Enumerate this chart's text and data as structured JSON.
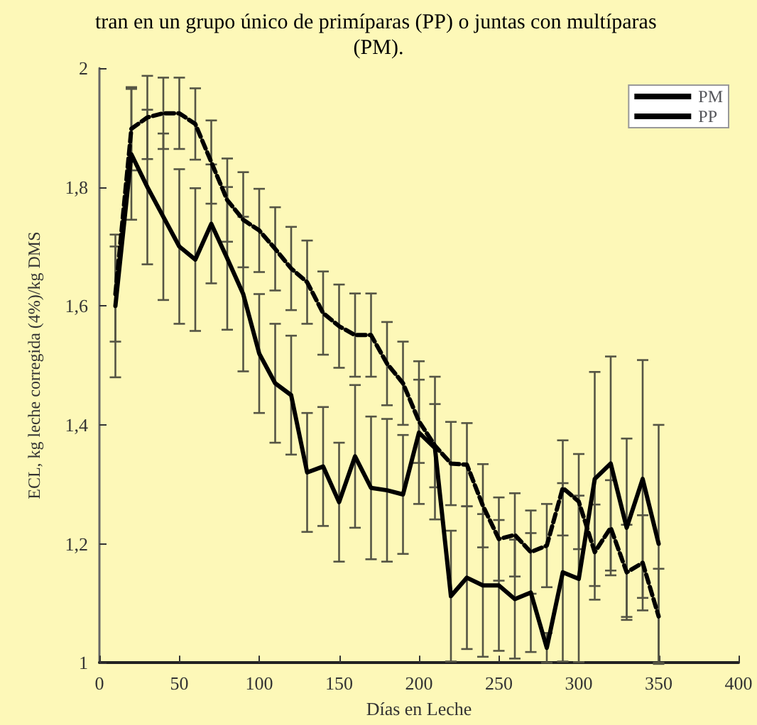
{
  "chart_data": {
    "type": "line",
    "title": "tran en un grupo único de primíparas (PP) o juntas con multíparas (PM).",
    "xlabel": "Días en Leche",
    "ylabel": "ECL, kg leche corregida (4%)/kg DMS",
    "x": [
      10,
      20,
      30,
      40,
      50,
      60,
      70,
      80,
      90,
      100,
      110,
      120,
      130,
      140,
      150,
      160,
      170,
      180,
      190,
      200,
      210,
      220,
      230,
      240,
      250,
      260,
      270,
      280,
      290,
      300,
      310,
      320,
      330,
      340,
      350
    ],
    "series": [
      {
        "name": "PM",
        "color": "#000000",
        "line_style": "solid",
        "values": [
          1.6,
          1.855,
          1.8,
          1.75,
          1.7,
          1.678,
          1.738,
          1.68,
          1.62,
          1.52,
          1.47,
          1.45,
          1.32,
          1.33,
          1.27,
          1.347,
          1.294,
          1.29,
          1.283,
          1.387,
          1.361,
          1.112,
          1.143,
          1.13,
          1.13,
          1.107,
          1.118,
          1.025,
          1.152,
          1.141,
          1.309,
          1.335,
          1.227,
          1.309,
          1.2
        ],
        "errors": [
          0.12,
          0.11,
          0.13,
          0.14,
          0.13,
          0.12,
          0.1,
          0.12,
          0.13,
          0.1,
          0.1,
          0.1,
          0.1,
          0.1,
          0.1,
          0.12,
          0.12,
          0.12,
          0.1,
          0.12,
          0.12,
          0.11,
          0.12,
          0.12,
          0.11,
          0.1,
          0.1,
          0.025,
          0.15,
          0.14,
          0.18,
          0.18,
          0.15,
          0.2,
          0.2
        ]
      },
      {
        "name": "PP",
        "color": "#000000",
        "line_style": "dashed",
        "values": [
          1.62,
          1.898,
          1.917,
          1.924,
          1.924,
          1.906,
          1.842,
          1.778,
          1.745,
          1.727,
          1.696,
          1.663,
          1.64,
          1.588,
          1.566,
          1.551,
          1.551,
          1.503,
          1.47,
          1.406,
          1.365,
          1.335,
          1.333,
          1.264,
          1.208,
          1.215,
          1.186,
          1.197,
          1.294,
          1.271,
          1.186,
          1.227,
          1.152,
          1.168,
          1.078
        ],
        "errors": [
          0.08,
          0.07,
          0.07,
          0.06,
          0.06,
          0.06,
          0.07,
          0.07,
          0.08,
          0.07,
          0.07,
          0.07,
          0.07,
          0.07,
          0.07,
          0.07,
          0.07,
          0.07,
          0.07,
          0.07,
          0.07,
          0.07,
          0.07,
          0.07,
          0.07,
          0.07,
          0.07,
          0.07,
          0.08,
          0.08,
          0.08,
          0.08,
          0.08,
          0.08,
          0.08
        ]
      }
    ],
    "xlim": [
      0,
      400
    ],
    "xticks": [
      0,
      50,
      100,
      150,
      200,
      250,
      300,
      350,
      400
    ],
    "ylim": [
      1,
      2
    ],
    "yticks": [
      {
        "value": 1,
        "label": "1"
      },
      {
        "value": 1.2,
        "label": "1,2"
      },
      {
        "value": 1.4,
        "label": "1,4"
      },
      {
        "value": 1.6,
        "label": "1,6"
      },
      {
        "value": 1.8,
        "label": "1,8"
      },
      {
        "value": 2,
        "label": "2"
      }
    ],
    "grid": false,
    "legend": "top right",
    "marker": "none"
  }
}
